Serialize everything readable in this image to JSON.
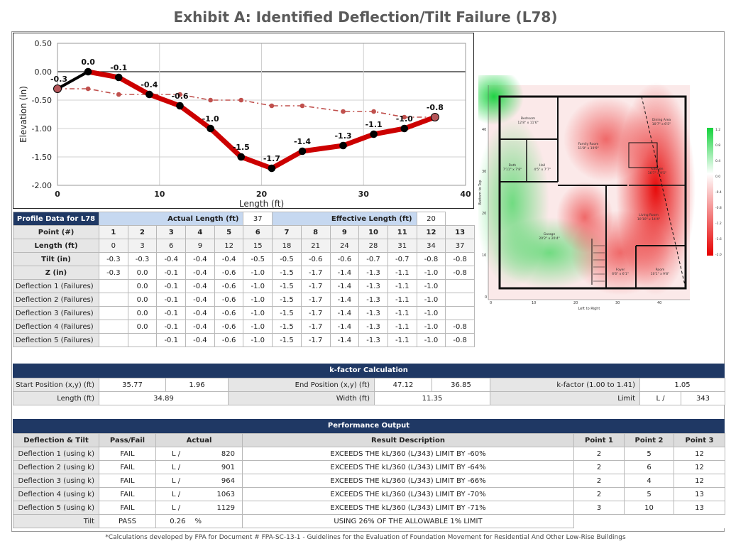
{
  "title": "Exhibit A: Identified Deflection/Tilt Failure (L78)",
  "chart_data": {
    "type": "line",
    "xlabel": "Length (ft)",
    "ylabel": "Elevation (in)",
    "xlim": [
      0,
      40
    ],
    "ylim": [
      -2.0,
      0.5
    ],
    "x_ticks": [
      "0",
      "10",
      "20",
      "30",
      "40"
    ],
    "y_ticks": [
      "0.50",
      "0.00",
      "-0.50",
      "-1.00",
      "-1.50",
      "-2.00"
    ],
    "grid": true,
    "legend": "none",
    "series": [
      {
        "style": "profile",
        "color": "#000000",
        "x": [
          0,
          3,
          6,
          9,
          12,
          15,
          18,
          21,
          24,
          28,
          31,
          34,
          37
        ],
        "y": [
          -0.3,
          0.0,
          -0.1,
          -0.4,
          -0.6,
          -1.0,
          -1.5,
          -1.7,
          -1.4,
          -1.3,
          -1.1,
          -1.0,
          -0.8
        ],
        "labels": [
          "-0.3",
          "0.0",
          "-0.1",
          "-0.4",
          "-0.6",
          "-1.0",
          "-1.5",
          "-1.7",
          "-1.4",
          "-1.3",
          "-1.1",
          "-1.0",
          "-0.8"
        ]
      },
      {
        "style": "failure",
        "color": "#cc0000",
        "x": [
          3,
          6,
          9,
          12,
          15,
          18,
          21,
          24,
          28,
          31,
          34,
          37
        ],
        "y": [
          0.0,
          -0.1,
          -0.4,
          -0.6,
          -1.0,
          -1.5,
          -1.7,
          -1.4,
          -1.3,
          -1.1,
          -1.0,
          -0.8
        ]
      },
      {
        "style": "tilt",
        "color": "#c0504d",
        "x": [
          0,
          3,
          6,
          9,
          12,
          15,
          18,
          21,
          24,
          28,
          31,
          34,
          37
        ],
        "y": [
          -0.3,
          -0.3,
          -0.4,
          -0.4,
          -0.4,
          -0.5,
          -0.5,
          -0.6,
          -0.6,
          -0.7,
          -0.7,
          -0.8,
          -0.8
        ]
      }
    ]
  },
  "heatmap": {
    "x_label": "Left to Right",
    "y_label": "Bottom to Top",
    "x_ticks": [
      "0",
      "10",
      "20",
      "30",
      "40"
    ],
    "y_ticks": [
      "0",
      "10",
      "20",
      "30",
      "40"
    ],
    "scale_ticks": [
      "1.2",
      "0.8",
      "0.4",
      "0.0",
      "-0.4",
      "-0.8",
      "-1.2",
      "-1.6",
      "-2.0"
    ],
    "colors": {
      "high": "#14d23c",
      "mid": "#ffffff",
      "low": "#e60000"
    },
    "rooms": [
      {
        "name": "Bedroom",
        "size": "12'8\" x 11'6\""
      },
      {
        "name": "Family Room",
        "size": "11'8\" x 19'9\""
      },
      {
        "name": "Dining Area",
        "size": "10'7\" x 6'5\""
      },
      {
        "name": "Bath",
        "size": "7'11\" x 7'8\""
      },
      {
        "name": "Hall",
        "size": "4'5\" x 7'7\""
      },
      {
        "name": "Kitchen",
        "size": "16'7\" x 9'5\""
      },
      {
        "name": "Living Room",
        "size": "10'10\" x 14'4\""
      },
      {
        "name": "Garage",
        "size": "20'2\" x 20'4\""
      },
      {
        "name": "Foyer",
        "size": "6'6\" x 6'1\""
      },
      {
        "name": "Room",
        "size": "10'1\" x 9'8\""
      }
    ]
  },
  "profile": {
    "header_label": "Profile Data for L78",
    "actual_length_label": "Actual Length (ft)",
    "actual_length_value": "37",
    "effective_length_label": "Effective Length (ft)",
    "effective_length_value": "20",
    "rows": [
      {
        "label": "Point (#)",
        "bold": true,
        "cells": [
          "1",
          "2",
          "3",
          "4",
          "5",
          "6",
          "7",
          "8",
          "9",
          "10",
          "11",
          "12",
          "13"
        ]
      },
      {
        "label": "Length (ft)",
        "bold": true,
        "cells": [
          "0",
          "3",
          "6",
          "9",
          "12",
          "15",
          "18",
          "21",
          "24",
          "28",
          "31",
          "34",
          "37"
        ]
      },
      {
        "label": "Tilt (in)",
        "bold": true,
        "cells": [
          "-0.3",
          "-0.3",
          "-0.4",
          "-0.4",
          "-0.4",
          "-0.5",
          "-0.5",
          "-0.6",
          "-0.6",
          "-0.7",
          "-0.7",
          "-0.8",
          "-0.8"
        ]
      },
      {
        "label": "Z (in)",
        "bold": true,
        "cells": [
          "-0.3",
          "0.0",
          "-0.1",
          "-0.4",
          "-0.6",
          "-1.0",
          "-1.5",
          "-1.7",
          "-1.4",
          "-1.3",
          "-1.1",
          "-1.0",
          "-0.8"
        ]
      },
      {
        "label": "Deflection 1 (Failures)",
        "bold": false,
        "cells": [
          "",
          "0.0",
          "-0.1",
          "-0.4",
          "-0.6",
          "-1.0",
          "-1.5",
          "-1.7",
          "-1.4",
          "-1.3",
          "-1.1",
          "-1.0",
          ""
        ]
      },
      {
        "label": "Deflection 2 (Failures)",
        "bold": false,
        "cells": [
          "",
          "0.0",
          "-0.1",
          "-0.4",
          "-0.6",
          "-1.0",
          "-1.5",
          "-1.7",
          "-1.4",
          "-1.3",
          "-1.1",
          "-1.0",
          ""
        ]
      },
      {
        "label": "Deflection 3 (Failures)",
        "bold": false,
        "cells": [
          "",
          "0.0",
          "-0.1",
          "-0.4",
          "-0.6",
          "-1.0",
          "-1.5",
          "-1.7",
          "-1.4",
          "-1.3",
          "-1.1",
          "-1.0",
          ""
        ]
      },
      {
        "label": "Deflection 4 (Failures)",
        "bold": false,
        "cells": [
          "",
          "0.0",
          "-0.1",
          "-0.4",
          "-0.6",
          "-1.0",
          "-1.5",
          "-1.7",
          "-1.4",
          "-1.3",
          "-1.1",
          "-1.0",
          "-0.8"
        ]
      },
      {
        "label": "Deflection 5 (Failures)",
        "bold": false,
        "cells": [
          "",
          "",
          "-0.1",
          "-0.4",
          "-0.6",
          "-1.0",
          "-1.5",
          "-1.7",
          "-1.4",
          "-1.3",
          "-1.1",
          "-1.0",
          "-0.8"
        ]
      }
    ]
  },
  "kfactor": {
    "title": "k-factor Calculation",
    "start_label": "Start Position (x,y) (ft)",
    "start_x": "35.77",
    "start_y": "1.96",
    "end_label": "End Position (x,y) (ft)",
    "end_x": "47.12",
    "end_y": "36.85",
    "k_label": "k-factor (1.00 to 1.41)",
    "k_value": "1.05",
    "length_label": "Length (ft)",
    "length_value": "34.89",
    "width_label": "Width (ft)",
    "width_value": "11.35",
    "limit_label": "Limit",
    "limit_prefix": "L /",
    "limit_value": "343"
  },
  "performance": {
    "title": "Performance Output",
    "headers": [
      "Deflection & Tilt",
      "Pass/Fail",
      "Actual",
      "Result Description",
      "Point 1",
      "Point 2",
      "Point 3"
    ],
    "rows": [
      {
        "label": "Deflection 1 (using k)",
        "status": "FAIL",
        "prefix": "L /",
        "actual": "820",
        "desc": "EXCEEDS THE kL/360 (L/343) LIMIT BY -60%",
        "p1": "2",
        "p2": "5",
        "p3": "12"
      },
      {
        "label": "Deflection 2 (using k)",
        "status": "FAIL",
        "prefix": "L /",
        "actual": "901",
        "desc": "EXCEEDS THE kL/360 (L/343) LIMIT BY -64%",
        "p1": "2",
        "p2": "6",
        "p3": "12"
      },
      {
        "label": "Deflection 3 (using k)",
        "status": "FAIL",
        "prefix": "L /",
        "actual": "964",
        "desc": "EXCEEDS THE kL/360 (L/343) LIMIT BY -66%",
        "p1": "2",
        "p2": "4",
        "p3": "12"
      },
      {
        "label": "Deflection 4 (using k)",
        "status": "FAIL",
        "prefix": "L /",
        "actual": "1063",
        "desc": "EXCEEDS THE kL/360 (L/343) LIMIT BY -70%",
        "p1": "2",
        "p2": "5",
        "p3": "13"
      },
      {
        "label": "Deflection 5 (using k)",
        "status": "FAIL",
        "prefix": "L /",
        "actual": "1129",
        "desc": "EXCEEDS THE kL/360 (L/343) LIMIT BY -71%",
        "p1": "3",
        "p2": "10",
        "p3": "13"
      }
    ],
    "tilt": {
      "label": "Tilt",
      "status": "PASS",
      "actual": "0.26",
      "unit": "%",
      "desc": "USING 26% OF THE ALLOWABLE 1% LIMIT"
    }
  },
  "footnote": "*Calculations developed by FPA for Document # FPA-SC-13-1 - Guidelines for the Evaluation of Foundation Movement for Residential And Other Low-Rise Buildings"
}
